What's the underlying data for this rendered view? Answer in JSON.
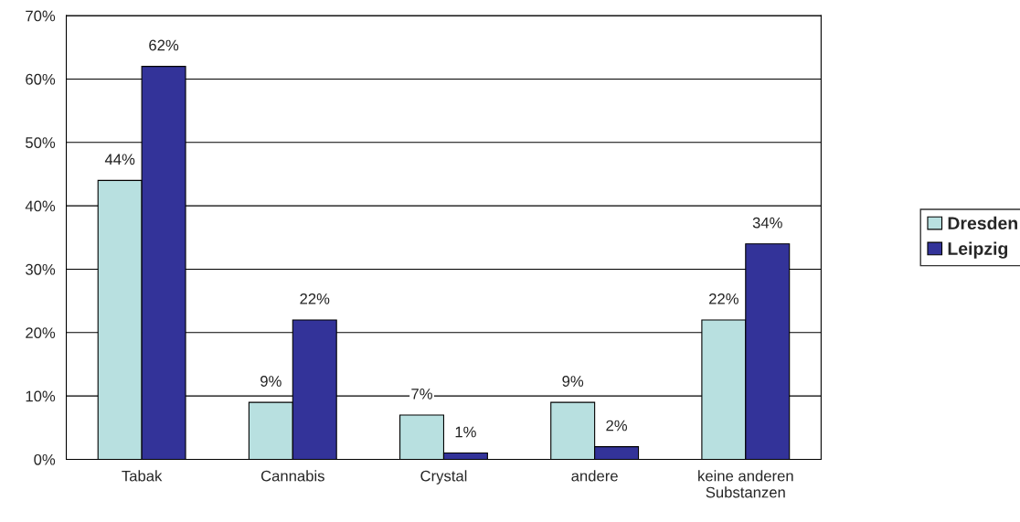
{
  "chart_data": {
    "type": "bar",
    "categories": [
      "Tabak",
      "Cannabis",
      "Crystal",
      "andere",
      "keine anderen\nSubstanzen"
    ],
    "series": [
      {
        "name": "Dresden",
        "color": "#b8e0e0",
        "values": [
          44,
          9,
          7,
          9,
          22
        ],
        "value_labels": [
          "44%",
          "9%",
          "7%",
          "9%",
          "22%"
        ]
      },
      {
        "name": "Leipzig",
        "color": "#333399",
        "values": [
          62,
          22,
          1,
          2,
          34
        ],
        "value_labels": [
          "62%",
          "22%",
          "1%",
          "2%",
          "34%"
        ]
      }
    ],
    "ylim": [
      0,
      70
    ],
    "yticks": [
      {
        "value": 0,
        "label": "0%"
      },
      {
        "value": 10,
        "label": "10%"
      },
      {
        "value": 20,
        "label": "20%"
      },
      {
        "value": 30,
        "label": "30%"
      },
      {
        "value": 40,
        "label": "40%"
      },
      {
        "value": 50,
        "label": "50%"
      },
      {
        "value": 60,
        "label": "60%"
      },
      {
        "value": 70,
        "label": "70%"
      }
    ],
    "grid": "y",
    "legend": "right"
  }
}
